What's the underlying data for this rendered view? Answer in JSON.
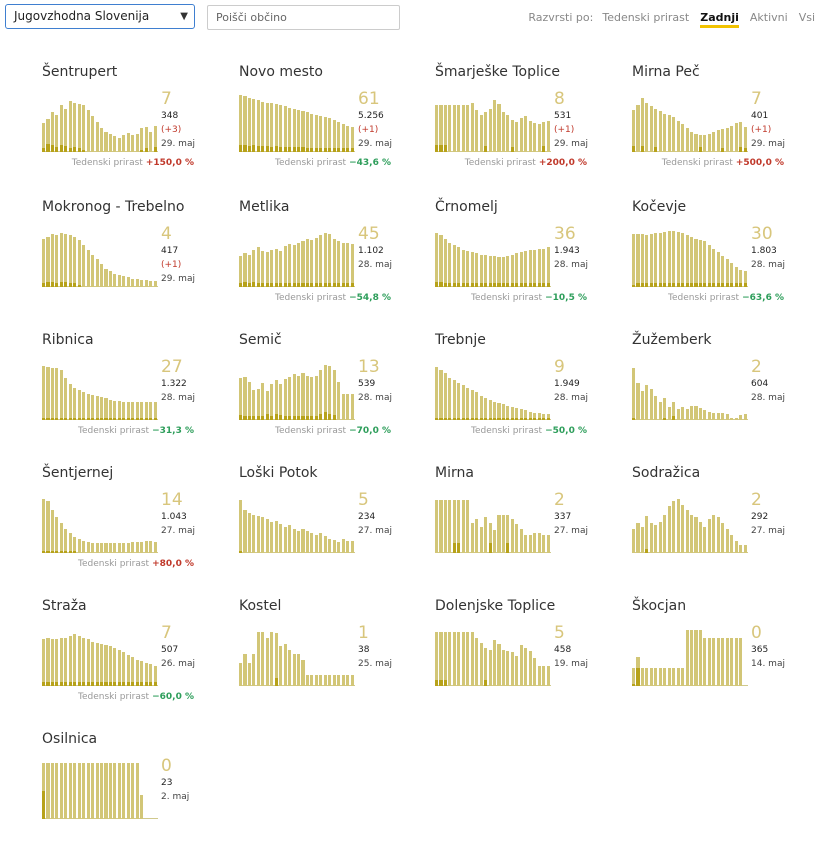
{
  "toolbar": {
    "region": "Jugovzhodna Slovenija",
    "search_placeholder": "Poišči občino",
    "sort_label": "Razvrsti po:",
    "sort_options": [
      {
        "label": "Tedenski prirast",
        "active": false
      },
      {
        "label": "Zadnji",
        "active": true
      },
      {
        "label": "Aktivni",
        "active": false
      },
      {
        "label": "Vsi",
        "active": false
      }
    ]
  },
  "growth_label": "Tedenski prirast",
  "colors": {
    "bar": "#d2c677",
    "bar_dark": "#b7a21a",
    "up": "#c0392b",
    "down": "#2e9e5b"
  },
  "municipalities": [
    {
      "name": "Šentrupert",
      "current": "7",
      "total": "348",
      "delta": "(+3)",
      "date": "29. maj",
      "growth": "+150,0 %",
      "growth_dir": "up",
      "bars": [
        0.48,
        0.55,
        0.66,
        0.62,
        0.78,
        0.72,
        0.85,
        0.82,
        0.8,
        0.78,
        0.7,
        0.6,
        0.5,
        0.4,
        0.34,
        0.3,
        0.26,
        0.24,
        0.28,
        0.32,
        0.28,
        0.3,
        0.4,
        0.42,
        0.34,
        0.44
      ],
      "dark": [
        0.06,
        0.14,
        0.12,
        0.08,
        0.12,
        0.1,
        0.06,
        0.08,
        0.06,
        0.04,
        0,
        0,
        0,
        0,
        0,
        0,
        0,
        0,
        0,
        0,
        0,
        0,
        0.04,
        0.06,
        0,
        0.08
      ]
    },
    {
      "name": "Novo mesto",
      "current": "61",
      "total": "5.256",
      "delta": "(+1)",
      "date": "29. maj",
      "growth": "−43,6 %",
      "growth_dir": "down",
      "bars": [
        0.95,
        0.94,
        0.9,
        0.88,
        0.86,
        0.84,
        0.82,
        0.82,
        0.8,
        0.78,
        0.76,
        0.74,
        0.72,
        0.7,
        0.68,
        0.66,
        0.64,
        0.62,
        0.6,
        0.58,
        0.56,
        0.54,
        0.5,
        0.46,
        0.44,
        0.42
      ],
      "dark": [
        0.12,
        0.12,
        0.1,
        0.12,
        0.1,
        0.1,
        0.1,
        0.08,
        0.1,
        0.08,
        0.08,
        0.08,
        0.08,
        0.08,
        0.08,
        0.06,
        0.06,
        0.06,
        0.06,
        0.06,
        0.06,
        0.06,
        0.06,
        0.06,
        0.06,
        0.06
      ]
    },
    {
      "name": "Šmarješke Toplice",
      "current": "8",
      "total": "531",
      "delta": "(+1)",
      "date": "29. maj",
      "growth": "+200,0 %",
      "growth_dir": "up",
      "bars": [
        0.78,
        0.78,
        0.78,
        0.78,
        0.78,
        0.78,
        0.78,
        0.78,
        0.82,
        0.7,
        0.62,
        0.66,
        0.72,
        0.86,
        0.8,
        0.66,
        0.62,
        0.54,
        0.5,
        0.56,
        0.6,
        0.52,
        0.48,
        0.46,
        0.5,
        0.52
      ],
      "dark": [
        0.12,
        0.12,
        0.12,
        0,
        0,
        0,
        0,
        0,
        0,
        0,
        0,
        0.1,
        0,
        0,
        0,
        0,
        0,
        0.08,
        0,
        0,
        0,
        0,
        0,
        0,
        0.1,
        0
      ]
    },
    {
      "name": "Mirna Peč",
      "current": "7",
      "total": "401",
      "delta": "(+1)",
      "date": "29. maj",
      "growth": "+500,0 %",
      "growth_dir": "up",
      "bars": [
        0.7,
        0.78,
        0.9,
        0.82,
        0.76,
        0.72,
        0.68,
        0.64,
        0.62,
        0.58,
        0.52,
        0.46,
        0.4,
        0.34,
        0.3,
        0.28,
        0.28,
        0.3,
        0.34,
        0.36,
        0.38,
        0.4,
        0.44,
        0.48,
        0.5,
        0.42
      ],
      "dark": [
        0.1,
        0,
        0.1,
        0,
        0,
        0.08,
        0,
        0,
        0,
        0,
        0,
        0,
        0,
        0,
        0,
        0.08,
        0,
        0,
        0,
        0,
        0.06,
        0,
        0,
        0,
        0.08,
        0.06
      ]
    },
    {
      "name": "Mokronog - Trebelno",
      "current": "4",
      "total": "417",
      "delta": "(+1)",
      "date": "29. maj",
      "growth": "",
      "growth_dir": "",
      "bars": [
        0.8,
        0.84,
        0.88,
        0.86,
        0.9,
        0.88,
        0.86,
        0.84,
        0.78,
        0.7,
        0.62,
        0.54,
        0.46,
        0.38,
        0.3,
        0.26,
        0.22,
        0.2,
        0.18,
        0.16,
        0.14,
        0.14,
        0.12,
        0.12,
        0.1,
        0.1
      ],
      "dark": [
        0.06,
        0.08,
        0.08,
        0.06,
        0.08,
        0.08,
        0.06,
        0.06,
        0.04,
        0,
        0,
        0,
        0,
        0,
        0,
        0,
        0,
        0,
        0,
        0,
        0,
        0,
        0,
        0,
        0,
        0
      ]
    },
    {
      "name": "Metlika",
      "current": "45",
      "total": "1.102",
      "delta": "",
      "date": "28. maj",
      "growth": "−54,8 %",
      "growth_dir": "down",
      "bars": [
        0.52,
        0.56,
        0.54,
        0.62,
        0.66,
        0.6,
        0.58,
        0.62,
        0.64,
        0.6,
        0.68,
        0.72,
        0.7,
        0.74,
        0.76,
        0.8,
        0.78,
        0.82,
        0.86,
        0.9,
        0.88,
        0.8,
        0.76,
        0.74,
        0.74,
        0.72
      ],
      "dark": [
        0.06,
        0.08,
        0.06,
        0.08,
        0.06,
        0.06,
        0.06,
        0.06,
        0.06,
        0.06,
        0.06,
        0.06,
        0.06,
        0.06,
        0.06,
        0.06,
        0.06,
        0.06,
        0.06,
        0.06,
        0.06,
        0.06,
        0.06,
        0.06,
        0.06,
        0.06
      ]
    },
    {
      "name": "Črnomelj",
      "current": "36",
      "total": "1.943",
      "delta": "",
      "date": "28. maj",
      "growth": "−10,5 %",
      "growth_dir": "down",
      "bars": [
        0.9,
        0.86,
        0.8,
        0.74,
        0.7,
        0.66,
        0.62,
        0.6,
        0.58,
        0.56,
        0.54,
        0.54,
        0.52,
        0.52,
        0.5,
        0.5,
        0.52,
        0.54,
        0.56,
        0.58,
        0.6,
        0.62,
        0.62,
        0.64,
        0.64,
        0.66
      ],
      "dark": [
        0.08,
        0.08,
        0.06,
        0.06,
        0.06,
        0.06,
        0.06,
        0.06,
        0.06,
        0.06,
        0.06,
        0.06,
        0.06,
        0.06,
        0.06,
        0.06,
        0.06,
        0.06,
        0.06,
        0.06,
        0.06,
        0.06,
        0.06,
        0.06,
        0.06,
        0.06
      ]
    },
    {
      "name": "Kočevje",
      "current": "30",
      "total": "1.803",
      "delta": "",
      "date": "28. maj",
      "growth": "−63,6 %",
      "growth_dir": "down",
      "bars": [
        0.88,
        0.88,
        0.88,
        0.86,
        0.88,
        0.9,
        0.9,
        0.92,
        0.94,
        0.94,
        0.92,
        0.9,
        0.86,
        0.84,
        0.8,
        0.78,
        0.76,
        0.7,
        0.64,
        0.58,
        0.52,
        0.46,
        0.4,
        0.34,
        0.28,
        0.26
      ],
      "dark": [
        0.04,
        0.06,
        0.06,
        0.06,
        0.06,
        0.06,
        0.06,
        0.06,
        0.06,
        0.06,
        0.06,
        0.06,
        0.06,
        0.06,
        0.06,
        0.06,
        0.06,
        0.06,
        0.06,
        0.06,
        0.06,
        0.06,
        0.06,
        0.06,
        0.06,
        0.06
      ]
    },
    {
      "name": "Ribnica",
      "current": "27",
      "total": "1.322",
      "delta": "",
      "date": "28. maj",
      "growth": "−31,3 %",
      "growth_dir": "down",
      "bars": [
        0.9,
        0.88,
        0.86,
        0.86,
        0.84,
        0.7,
        0.6,
        0.54,
        0.5,
        0.46,
        0.44,
        0.42,
        0.4,
        0.38,
        0.36,
        0.34,
        0.32,
        0.32,
        0.3,
        0.3,
        0.3,
        0.3,
        0.3,
        0.3,
        0.3,
        0.3
      ],
      "dark": [
        0.04,
        0.04,
        0.04,
        0.04,
        0.04,
        0.04,
        0.04,
        0.04,
        0.04,
        0.04,
        0.04,
        0.04,
        0.04,
        0.04,
        0.04,
        0.04,
        0.04,
        0.04,
        0.04,
        0.04,
        0.04,
        0.04,
        0.04,
        0.04,
        0.04,
        0.04
      ]
    },
    {
      "name": "Semič",
      "current": "13",
      "total": "539",
      "delta": "",
      "date": "28. maj",
      "growth": "−70,0 %",
      "growth_dir": "down",
      "bars": [
        0.7,
        0.72,
        0.64,
        0.5,
        0.52,
        0.62,
        0.48,
        0.6,
        0.66,
        0.6,
        0.68,
        0.72,
        0.76,
        0.74,
        0.78,
        0.74,
        0.72,
        0.74,
        0.84,
        0.92,
        0.9,
        0.84,
        0.64,
        0.44,
        0.44,
        0.44
      ],
      "dark": [
        0.08,
        0.06,
        0.06,
        0.06,
        0.06,
        0.06,
        0.1,
        0.06,
        0.1,
        0.08,
        0.06,
        0.06,
        0.06,
        0.06,
        0.06,
        0.06,
        0.06,
        0.06,
        0.1,
        0.14,
        0.1,
        0.08,
        0,
        0,
        0,
        0
      ]
    },
    {
      "name": "Trebnje",
      "current": "9",
      "total": "1.949",
      "delta": "",
      "date": "28. maj",
      "growth": "−50,0 %",
      "growth_dir": "down",
      "bars": [
        0.88,
        0.84,
        0.78,
        0.7,
        0.66,
        0.62,
        0.58,
        0.54,
        0.5,
        0.46,
        0.4,
        0.36,
        0.34,
        0.3,
        0.28,
        0.26,
        0.24,
        0.22,
        0.2,
        0.18,
        0.16,
        0.14,
        0.12,
        0.12,
        0.1,
        0.1
      ],
      "dark": [
        0.04,
        0.04,
        0.04,
        0.04,
        0.04,
        0.04,
        0.04,
        0.04,
        0.04,
        0.04,
        0.04,
        0.04,
        0.04,
        0.04,
        0.04,
        0.04,
        0.04,
        0.04,
        0.04,
        0.04,
        0.04,
        0.04,
        0.04,
        0.04,
        0.04,
        0.04
      ]
    },
    {
      "name": "Žužemberk",
      "current": "2",
      "total": "604",
      "delta": "",
      "date": "28. maj",
      "growth": "",
      "growth_dir": "",
      "bars": [
        0.86,
        0.62,
        0.48,
        0.58,
        0.52,
        0.4,
        0.3,
        0.36,
        0.22,
        0.3,
        0.18,
        0.22,
        0.18,
        0.24,
        0.24,
        0.2,
        0.16,
        0.14,
        0.12,
        0.12,
        0.12,
        0.1,
        0.04,
        0.04,
        0.08,
        0.1
      ],
      "dark": [
        0.04,
        0,
        0,
        0,
        0,
        0,
        0,
        0.04,
        0,
        0.06,
        0,
        0,
        0,
        0,
        0,
        0,
        0,
        0,
        0,
        0,
        0,
        0,
        0,
        0,
        0,
        0
      ]
    },
    {
      "name": "Šentjernej",
      "current": "14",
      "total": "1.043",
      "delta": "",
      "date": "27. maj",
      "growth": "+80,0 %",
      "growth_dir": "up",
      "bars": [
        0.9,
        0.86,
        0.72,
        0.6,
        0.5,
        0.4,
        0.34,
        0.26,
        0.24,
        0.2,
        0.18,
        0.16,
        0.16,
        0.16,
        0.16,
        0.16,
        0.16,
        0.16,
        0.16,
        0.16,
        0.18,
        0.18,
        0.18,
        0.2,
        0.2,
        0.18
      ],
      "dark": [
        0.04,
        0.04,
        0.04,
        0.04,
        0.04,
        0.04,
        0.04,
        0.04,
        0,
        0,
        0,
        0,
        0,
        0,
        0,
        0,
        0,
        0,
        0,
        0,
        0,
        0,
        0,
        0,
        0,
        0
      ]
    },
    {
      "name": "Loški Potok",
      "current": "5",
      "total": "234",
      "delta": "",
      "date": "27. maj",
      "growth": "",
      "growth_dir": "",
      "bars": [
        0.88,
        0.72,
        0.66,
        0.64,
        0.62,
        0.6,
        0.56,
        0.52,
        0.54,
        0.48,
        0.44,
        0.46,
        0.4,
        0.36,
        0.4,
        0.36,
        0.34,
        0.3,
        0.34,
        0.28,
        0.24,
        0.22,
        0.18,
        0.24,
        0.2,
        0.2
      ],
      "dark": [
        0.04,
        0,
        0,
        0,
        0,
        0,
        0,
        0,
        0,
        0,
        0,
        0,
        0,
        0,
        0,
        0,
        0,
        0,
        0,
        0,
        0,
        0,
        0,
        0,
        0,
        0
      ]
    },
    {
      "name": "Mirna",
      "current": "2",
      "total": "337",
      "delta": "",
      "date": "27. maj",
      "growth": "",
      "growth_dir": "",
      "bars": [
        0.88,
        0.88,
        0.88,
        0.88,
        0.88,
        0.88,
        0.88,
        0.88,
        0.5,
        0.56,
        0.44,
        0.6,
        0.5,
        0.38,
        0.64,
        0.64,
        0.64,
        0.56,
        0.48,
        0.4,
        0.3,
        0.3,
        0.34,
        0.34,
        0.3,
        0.3
      ],
      "dark": [
        0,
        0,
        0,
        0,
        0.16,
        0.16,
        0,
        0,
        0,
        0,
        0,
        0,
        0.16,
        0,
        0,
        0,
        0.16,
        0,
        0,
        0,
        0,
        0,
        0,
        0,
        0,
        0
      ]
    },
    {
      "name": "Sodražica",
      "current": "2",
      "total": "292",
      "delta": "",
      "date": "27. maj",
      "growth": "",
      "growth_dir": "",
      "bars": [
        0.4,
        0.5,
        0.44,
        0.62,
        0.5,
        0.46,
        0.52,
        0.64,
        0.78,
        0.86,
        0.9,
        0.8,
        0.72,
        0.64,
        0.6,
        0.52,
        0.44,
        0.56,
        0.64,
        0.6,
        0.5,
        0.4,
        0.3,
        0.2,
        0.14,
        0.14
      ],
      "dark": [
        0,
        0,
        0,
        0.06,
        0,
        0,
        0,
        0,
        0,
        0,
        0,
        0,
        0,
        0,
        0,
        0,
        0,
        0,
        0,
        0,
        0,
        0,
        0,
        0,
        0,
        0
      ]
    },
    {
      "name": "Straža",
      "current": "7",
      "total": "507",
      "delta": "",
      "date": "26. maj",
      "growth": "−60,0 %",
      "growth_dir": "down",
      "bars": [
        0.78,
        0.8,
        0.78,
        0.78,
        0.8,
        0.8,
        0.84,
        0.86,
        0.84,
        0.8,
        0.78,
        0.74,
        0.72,
        0.7,
        0.68,
        0.66,
        0.64,
        0.6,
        0.56,
        0.52,
        0.48,
        0.44,
        0.42,
        0.38,
        0.36,
        0.34
      ],
      "dark": [
        0.06,
        0.06,
        0.06,
        0.06,
        0.06,
        0.06,
        0.06,
        0.06,
        0.06,
        0.06,
        0.06,
        0.06,
        0.06,
        0.06,
        0.06,
        0.06,
        0.06,
        0.06,
        0.06,
        0.06,
        0.06,
        0.06,
        0.06,
        0.06,
        0.06,
        0.06
      ]
    },
    {
      "name": "Kostel",
      "current": "1",
      "total": "38",
      "delta": "",
      "date": "25. maj",
      "growth": "",
      "growth_dir": "",
      "bars": [
        0.38,
        0.54,
        0.38,
        0.54,
        0.9,
        0.9,
        0.8,
        0.9,
        0.88,
        0.66,
        0.7,
        0.6,
        0.54,
        0.54,
        0.44,
        0.18,
        0.18,
        0.18,
        0.18,
        0.18,
        0.18,
        0.18,
        0.18,
        0.18,
        0.18,
        0.18
      ],
      "dark": [
        0,
        0,
        0,
        0,
        0,
        0,
        0,
        0,
        0.14,
        0,
        0,
        0,
        0,
        0,
        0,
        0,
        0,
        0,
        0,
        0,
        0,
        0,
        0,
        0,
        0,
        0
      ]
    },
    {
      "name": "Dolenjske Toplice",
      "current": "5",
      "total": "458",
      "delta": "",
      "date": "19. maj",
      "growth": "",
      "growth_dir": "",
      "bars": [
        0.9,
        0.9,
        0.9,
        0.9,
        0.9,
        0.9,
        0.9,
        0.9,
        0.9,
        0.8,
        0.72,
        0.64,
        0.6,
        0.76,
        0.7,
        0.6,
        0.58,
        0.56,
        0.5,
        0.68,
        0.64,
        0.58,
        0.46,
        0.34,
        0.34,
        0.34
      ],
      "dark": [
        0.1,
        0.1,
        0.1,
        0,
        0,
        0,
        0,
        0,
        0,
        0,
        0,
        0.1,
        0,
        0,
        0,
        0,
        0,
        0,
        0,
        0,
        0,
        0,
        0,
        0,
        0,
        0
      ]
    },
    {
      "name": "Škocjan",
      "current": "0",
      "total": "365",
      "delta": "",
      "date": "14. maj",
      "growth": "",
      "growth_dir": "",
      "bars": [
        0.3,
        0.48,
        0.3,
        0.3,
        0.3,
        0.3,
        0.3,
        0.3,
        0.3,
        0.3,
        0.3,
        0.3,
        0.94,
        0.94,
        0.94,
        0.94,
        0.8,
        0.8,
        0.8,
        0.8,
        0.8,
        0.8,
        0.8,
        0.8,
        0.8,
        0
      ],
      "dark": [
        0.04,
        0.3,
        0,
        0,
        0,
        0,
        0,
        0,
        0,
        0,
        0,
        0,
        0,
        0,
        0,
        0,
        0,
        0,
        0,
        0,
        0,
        0,
        0,
        0,
        0,
        0
      ]
    },
    {
      "name": "Osilnica",
      "current": "0",
      "total": "23",
      "delta": "",
      "date": "2. maj",
      "growth": "",
      "growth_dir": "",
      "bars": [
        0.94,
        0.94,
        0.94,
        0.94,
        0.94,
        0.94,
        0.94,
        0.94,
        0.94,
        0.94,
        0.94,
        0.94,
        0.94,
        0.94,
        0.94,
        0.94,
        0.94,
        0.94,
        0.94,
        0.94,
        0.94,
        0.94,
        0.4,
        0,
        0,
        0
      ],
      "dark": [
        0.46,
        0,
        0,
        0,
        0,
        0,
        0,
        0,
        0,
        0,
        0,
        0,
        0,
        0,
        0,
        0,
        0,
        0,
        0,
        0,
        0,
        0,
        0,
        0,
        0,
        0
      ]
    }
  ]
}
